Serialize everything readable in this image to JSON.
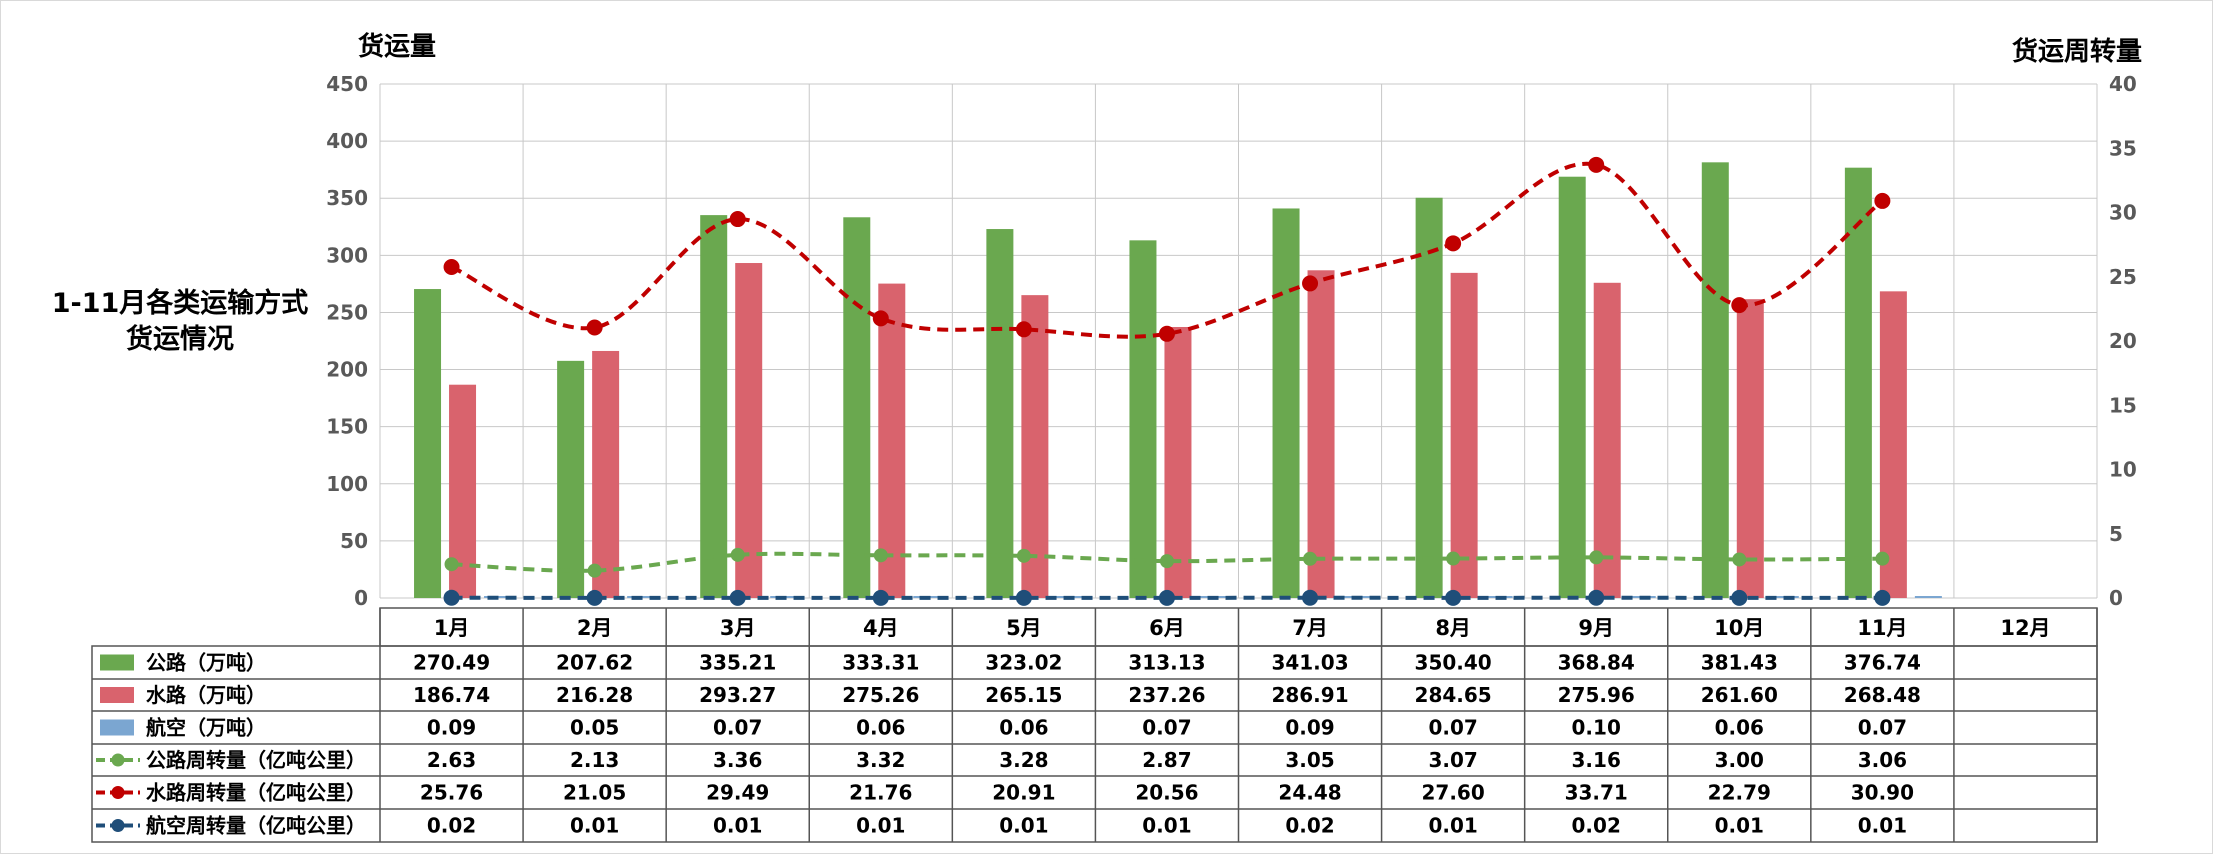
{
  "left_axis_title": "货运量",
  "right_axis_title": "货运周转量",
  "side_title_line1": "1-11月各类运输方式",
  "side_title_line2": "货运情况",
  "colors": {
    "road": "#6aa84f",
    "water": "#d9636d",
    "air": "#7ba6d1",
    "road_turnover": "#6aa84f",
    "water_turnover": "#c00000",
    "air_turnover": "#1f4e79",
    "grid": "#c8c8c8",
    "table_border": "#555555"
  },
  "chart_data": {
    "type": "bar",
    "categories": [
      "1月",
      "2月",
      "3月",
      "4月",
      "5月",
      "6月",
      "7月",
      "8月",
      "9月",
      "10月",
      "11月",
      "12月"
    ],
    "y_left": {
      "min": 0,
      "max": 450,
      "step": 50,
      "ticks": [
        "0",
        "50",
        "100",
        "150",
        "200",
        "250",
        "300",
        "350",
        "400",
        "450"
      ]
    },
    "y_right": {
      "min": 0,
      "max": 40,
      "step": 5,
      "ticks": [
        "0",
        "5",
        "10",
        "15",
        "20",
        "25",
        "30",
        "35",
        "40"
      ]
    },
    "grid": true,
    "legend": "table",
    "series": [
      {
        "name": "公路（万吨）",
        "kind": "bar",
        "axis": "left",
        "values": [
          270.49,
          207.62,
          335.21,
          333.31,
          323.02,
          313.13,
          341.03,
          350.4,
          368.84,
          381.43,
          376.74,
          null
        ],
        "labels": [
          "270.49",
          "207.62",
          "335.21",
          "333.31",
          "323.02",
          "313.13",
          "341.03",
          "350.40",
          "368.84",
          "381.43",
          "376.74",
          ""
        ]
      },
      {
        "name": "水路（万吨）",
        "kind": "bar",
        "axis": "left",
        "values": [
          186.74,
          216.28,
          293.27,
          275.26,
          265.15,
          237.26,
          286.91,
          284.65,
          275.96,
          261.6,
          268.48,
          null
        ],
        "labels": [
          "186.74",
          "216.28",
          "293.27",
          "275.26",
          "265.15",
          "237.26",
          "286.91",
          "284.65",
          "275.96",
          "261.60",
          "268.48",
          ""
        ]
      },
      {
        "name": "航空（万吨）",
        "kind": "bar",
        "axis": "left",
        "values": [
          0.09,
          0.05,
          0.07,
          0.06,
          0.06,
          0.07,
          0.09,
          0.07,
          0.1,
          0.06,
          0.07,
          null
        ],
        "labels": [
          "0.09",
          "0.05",
          "0.07",
          "0.06",
          "0.06",
          "0.07",
          "0.09",
          "0.07",
          "0.10",
          "0.06",
          "0.07",
          ""
        ]
      },
      {
        "name": "公路周转量（亿吨公里）",
        "kind": "line",
        "axis": "right",
        "values": [
          2.63,
          2.13,
          3.36,
          3.32,
          3.28,
          2.87,
          3.05,
          3.07,
          3.16,
          3.0,
          3.06,
          null
        ],
        "labels": [
          "2.63",
          "2.13",
          "3.36",
          "3.32",
          "3.28",
          "2.87",
          "3.05",
          "3.07",
          "3.16",
          "3.00",
          "3.06",
          ""
        ]
      },
      {
        "name": "水路周转量（亿吨公里）",
        "kind": "line",
        "axis": "right",
        "values": [
          25.76,
          21.05,
          29.49,
          21.76,
          20.91,
          20.56,
          24.48,
          27.6,
          33.71,
          22.79,
          30.9,
          null
        ],
        "labels": [
          "25.76",
          "21.05",
          "29.49",
          "21.76",
          "20.91",
          "20.56",
          "24.48",
          "27.60",
          "33.71",
          "22.79",
          "30.90",
          ""
        ]
      },
      {
        "name": "航空周转量（亿吨公里）",
        "kind": "line",
        "axis": "right",
        "values": [
          0.02,
          0.01,
          0.01,
          0.01,
          0.01,
          0.01,
          0.02,
          0.01,
          0.02,
          0.01,
          0.01,
          null
        ],
        "labels": [
          "0.02",
          "0.01",
          "0.01",
          "0.01",
          "0.01",
          "0.01",
          "0.02",
          "0.01",
          "0.02",
          "0.01",
          "0.01",
          ""
        ]
      }
    ]
  }
}
